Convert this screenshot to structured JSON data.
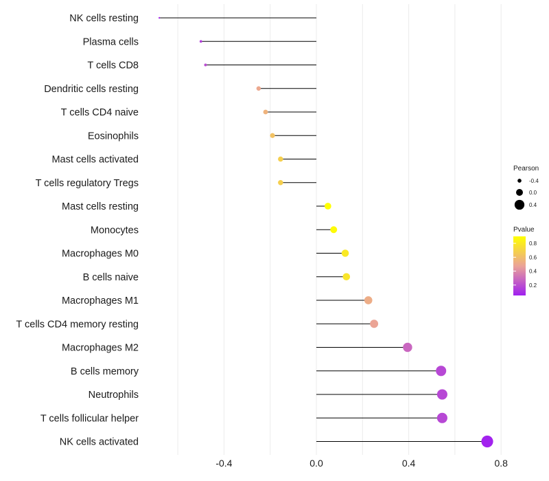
{
  "chart_data": {
    "type": "lollipop",
    "title": "",
    "xlabel": "",
    "ylabel": "",
    "xlim": [
      -0.8,
      0.8
    ],
    "xticks": [
      -0.4,
      0.0,
      0.4,
      0.8
    ],
    "xtick_labels": [
      "-0.4",
      "0.0",
      "0.4",
      "0.8"
    ],
    "grid": true,
    "categories": [
      "NK cells resting",
      "Plasma cells",
      "T cells CD8",
      "Dendritic cells resting",
      "T cells CD4 naive",
      "Eosinophils",
      "Mast cells activated",
      "T cells regulatory  Tregs",
      "Mast cells resting",
      "Monocytes",
      "Macrophages M0",
      "B cells naive",
      "Macrophages M1",
      "T cells CD4 memory resting",
      "Macrophages M2",
      "B cells memory",
      "Neutrophils",
      "T cells follicular helper",
      "NK cells activated"
    ],
    "pearson": [
      -0.68,
      -0.5,
      -0.48,
      -0.25,
      -0.22,
      -0.19,
      -0.155,
      -0.155,
      0.05,
      0.075,
      0.125,
      0.13,
      0.225,
      0.25,
      0.395,
      0.54,
      0.545,
      0.545,
      0.74
    ],
    "pvalue": [
      0.08,
      0.15,
      0.2,
      0.5,
      0.55,
      0.62,
      0.68,
      0.68,
      0.9,
      0.88,
      0.8,
      0.78,
      0.52,
      0.48,
      0.28,
      0.18,
      0.18,
      0.18,
      0.06
    ],
    "legend": {
      "size_title": "Pearson",
      "size_labels": [
        "-0.4",
        "0.0",
        "0.4"
      ],
      "size_values": [
        -0.4,
        0.0,
        0.4
      ],
      "color_title": "Pvalue",
      "color_labels": [
        "0.8",
        "0.6",
        "0.4",
        "0.2"
      ],
      "color_values": [
        0.8,
        0.6,
        0.4,
        0.2
      ],
      "color_range": [
        0.05,
        0.9
      ],
      "position": "right"
    },
    "colors": {
      "low": "#a020f0",
      "mid": "#eba397",
      "high": "#ffff00",
      "stem": "#000000",
      "grid": "#ebebeb"
    }
  }
}
